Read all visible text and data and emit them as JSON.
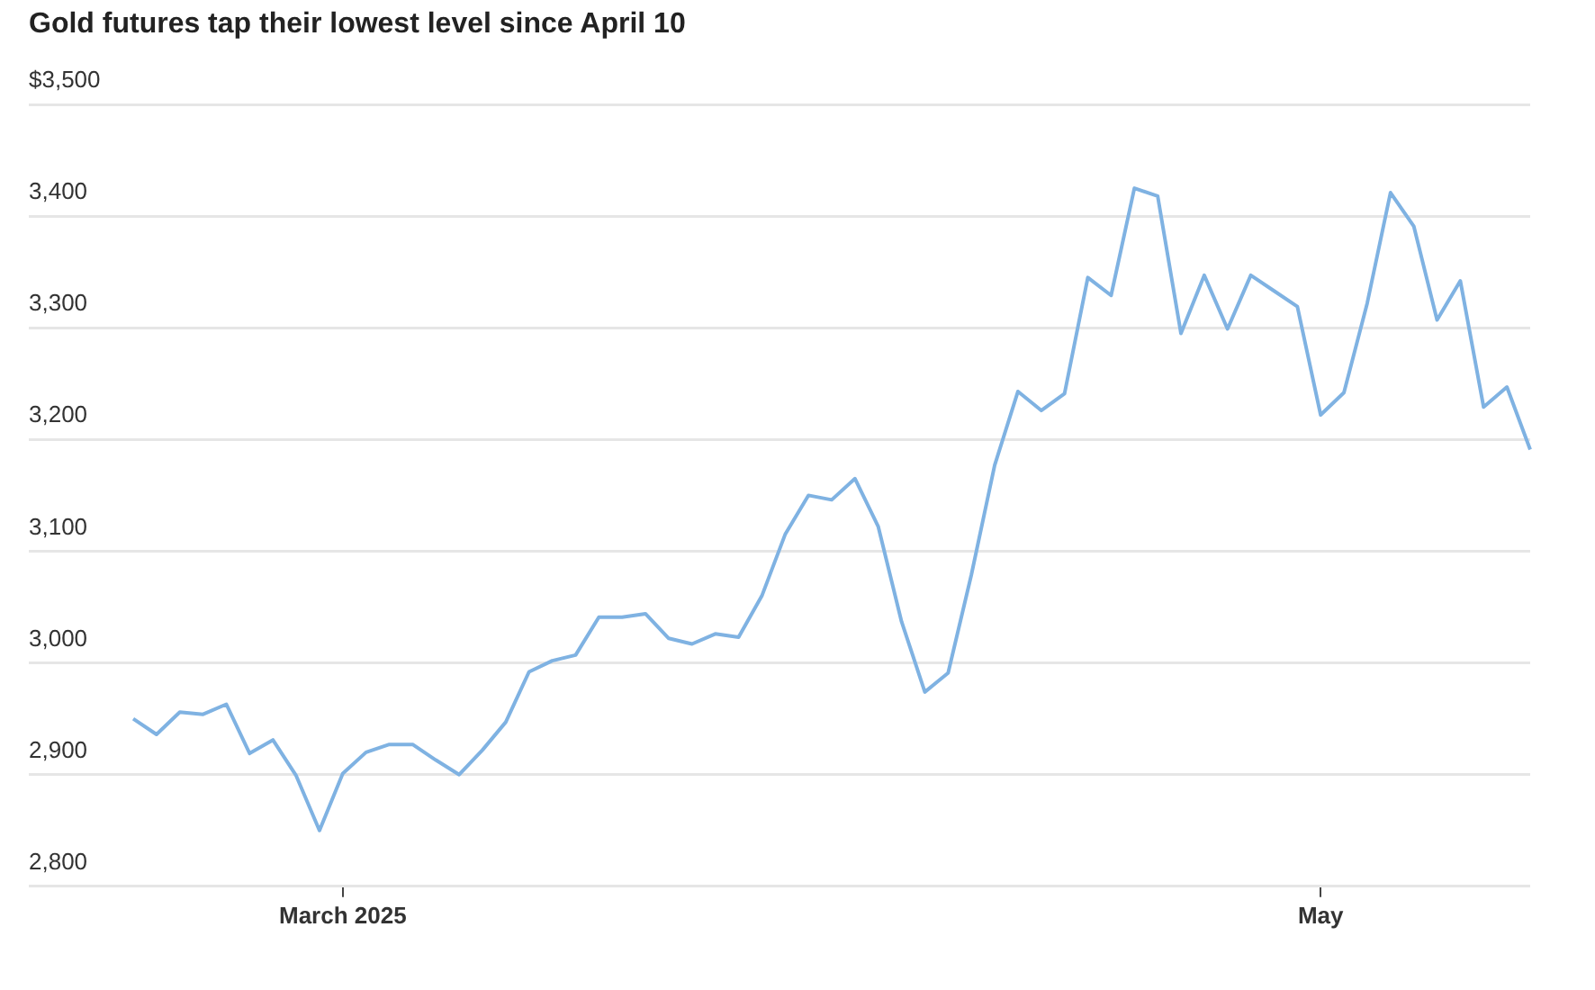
{
  "chart_data": {
    "type": "line",
    "title": "Gold futures tap their lowest level since April 10",
    "categories": [
      null,
      null,
      null,
      null,
      null,
      null,
      null,
      null,
      null,
      "March 2025",
      null,
      null,
      null,
      null,
      null,
      null,
      null,
      null,
      null,
      null,
      null,
      null,
      null,
      null,
      null,
      null,
      null,
      null,
      null,
      null,
      null,
      null,
      null,
      null,
      null,
      null,
      null,
      null,
      null,
      null,
      null,
      null,
      null,
      null,
      null,
      null,
      null,
      null,
      null,
      null,
      null,
      "May",
      null,
      null,
      null,
      null,
      null,
      null,
      null,
      null,
      null
    ],
    "series": [
      {
        "color": "#7fb2e2",
        "values": [
          2950,
          2936,
          2956,
          2954,
          2963,
          2919,
          2931,
          2899,
          2850,
          2901,
          2920,
          2927,
          2927,
          2913,
          2900,
          2922,
          2947,
          2992,
          3002,
          3007,
          3041,
          3041,
          3044,
          3022,
          3017,
          3026,
          3023,
          3060,
          3115,
          3150,
          3146,
          3165,
          3122,
          3037,
          2974,
          2991,
          3079,
          3177,
          3243,
          3226,
          3241,
          3345,
          3329,
          3425,
          3418,
          3295,
          3347,
          3299,
          3347,
          3333,
          3319,
          3222,
          3242,
          3322,
          3421,
          3391,
          3307,
          3342,
          3229,
          3247,
          3191
        ]
      }
    ],
    "ylim": [
      2800,
      3500
    ],
    "yticks": [
      {
        "value": 2800,
        "label": "2,800"
      },
      {
        "value": 2900,
        "label": "2,900"
      },
      {
        "value": 3000,
        "label": "3,000"
      },
      {
        "value": 3100,
        "label": "3,100"
      },
      {
        "value": 3200,
        "label": "3,200"
      },
      {
        "value": 3300,
        "label": "3,300"
      },
      {
        "value": 3400,
        "label": "3,400"
      },
      {
        "value": 3500,
        "label": "$3,500"
      }
    ],
    "grid": "y",
    "legend": false,
    "marker": "none",
    "line_style": "solid"
  }
}
